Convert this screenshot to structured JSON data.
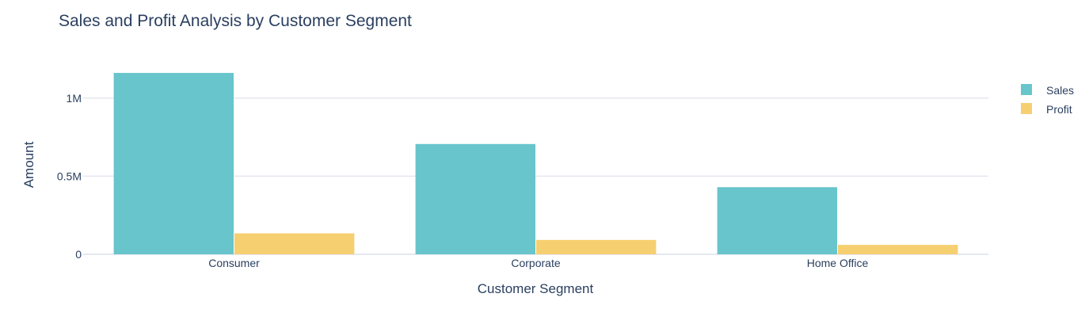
{
  "chart_data": {
    "type": "bar",
    "title": "Sales and Profit Analysis by Customer Segment",
    "xlabel": "Customer Segment",
    "ylabel": "Amount",
    "categories": [
      "Consumer",
      "Corporate",
      "Home Office"
    ],
    "series": [
      {
        "name": "Sales",
        "values": [
          1161401,
          706146,
          429653
        ],
        "color": "#67c5cb"
      },
      {
        "name": "Profit",
        "values": [
          134119,
          91979,
          60299
        ],
        "color": "#f6cf71"
      }
    ],
    "ylim": [
      0,
      1222528
    ],
    "yticks": [
      {
        "value": 0,
        "label": "0"
      },
      {
        "value": 500000,
        "label": "0.5M"
      },
      {
        "value": 1000000,
        "label": "1M"
      }
    ],
    "grid": true,
    "legend_position": "top-right"
  }
}
